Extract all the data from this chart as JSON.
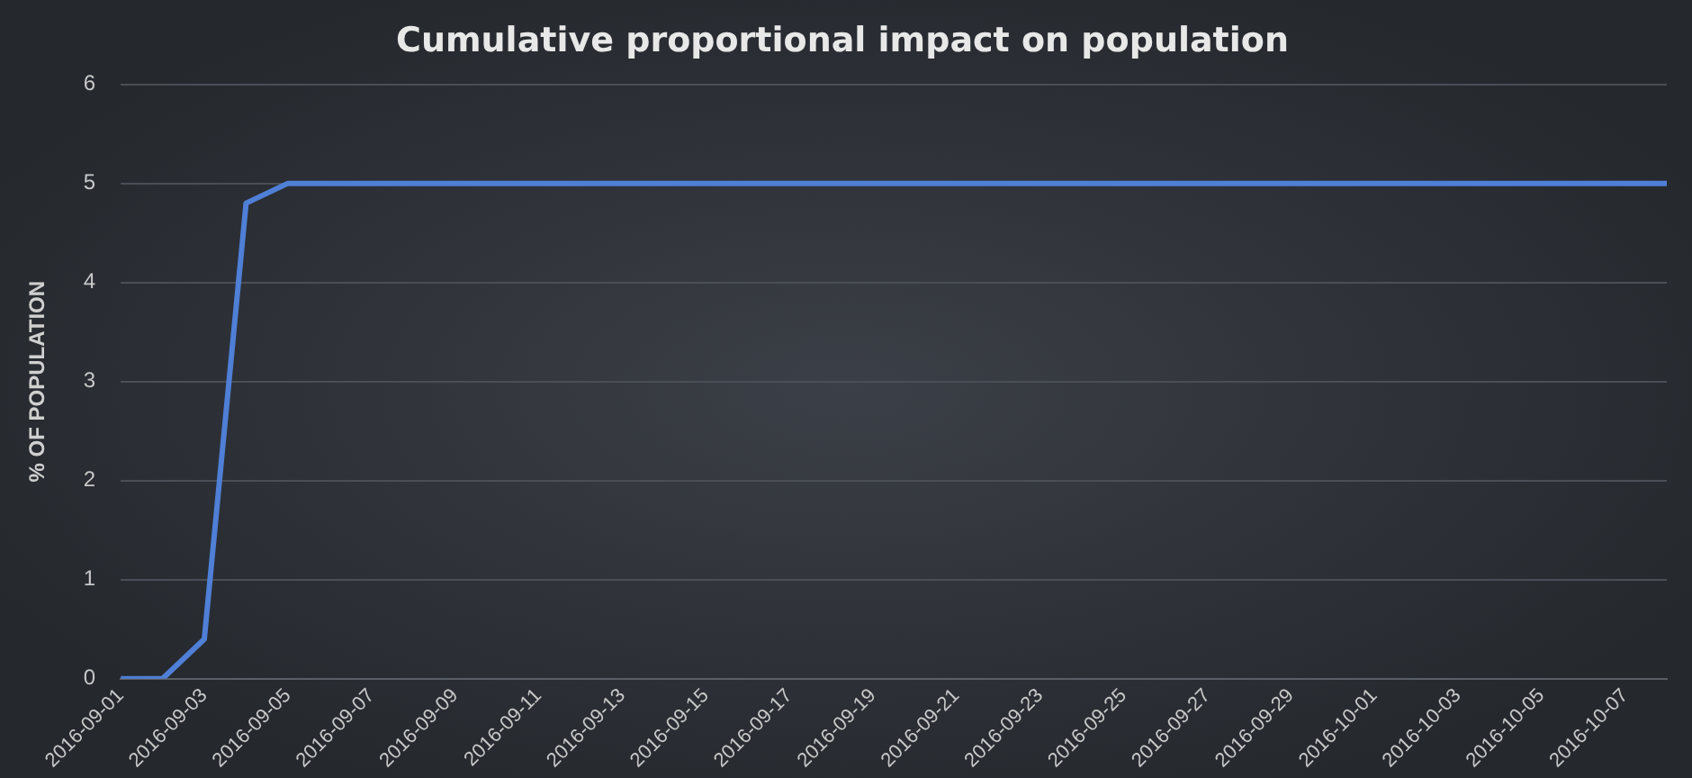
{
  "chart_data": {
    "type": "line",
    "title": "Cumulative proportional impact on population",
    "ylabel": "% OF POPULATION",
    "categories": [
      "2016-09-01",
      null,
      "2016-09-03",
      null,
      "2016-09-05",
      null,
      "2016-09-07",
      null,
      "2016-09-09",
      null,
      "2016-09-11",
      null,
      "2016-09-13",
      null,
      "2016-09-15",
      null,
      "2016-09-17",
      null,
      "2016-09-19",
      null,
      "2016-09-21",
      null,
      "2016-09-23",
      null,
      "2016-09-25",
      null,
      "2016-09-27",
      null,
      "2016-09-29",
      null,
      "2016-10-01",
      null,
      "2016-10-03",
      null,
      "2016-10-05",
      null,
      "2016-10-07",
      null
    ],
    "series": [
      {
        "color": "#4f7fd6",
        "values": [
          0,
          0,
          0.4,
          4.8,
          5,
          5,
          5,
          5,
          5,
          5,
          5,
          5,
          5,
          5,
          5,
          5,
          5,
          5,
          5,
          5,
          5,
          5,
          5,
          5,
          5,
          5,
          5,
          5,
          5,
          5,
          5,
          5,
          5,
          5,
          5,
          5,
          5,
          5
        ]
      }
    ],
    "ylim": [
      0,
      6
    ],
    "yticks": [
      0,
      1,
      2,
      3,
      4,
      5,
      6
    ],
    "grid": "y",
    "legend": false,
    "marker": "none",
    "line_style": "solid"
  }
}
